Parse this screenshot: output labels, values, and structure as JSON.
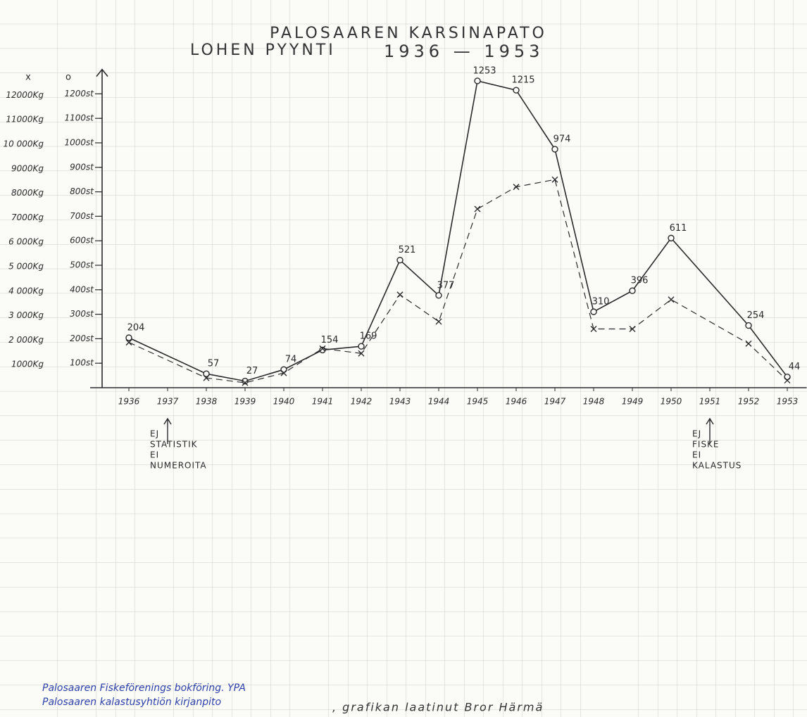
{
  "chart_data": {
    "type": "line",
    "title": "PALOSAAREN KARSINAPATO",
    "subtitle": "LOHEN PYYNTI",
    "period": "1936 — 1953",
    "x": [
      1936,
      1938,
      1939,
      1940,
      1941,
      1942,
      1943,
      1944,
      1945,
      1946,
      1947,
      1948,
      1949,
      1950,
      1952,
      1953
    ],
    "xlim": [
      1935,
      1953.5
    ],
    "xticks": [
      1936,
      1937,
      1938,
      1939,
      1940,
      1941,
      1942,
      1943,
      1944,
      1945,
      1946,
      1947,
      1948,
      1949,
      1950,
      1951,
      1952,
      1953
    ],
    "last_xtick_color": "#2b3fa8",
    "ylim": [
      0,
      1300
    ],
    "yticks": [
      {
        "value": 100,
        "label": "100st"
      },
      {
        "value": 200,
        "label": "200st"
      },
      {
        "value": 300,
        "label": "300st"
      },
      {
        "value": 400,
        "label": "400st"
      },
      {
        "value": 500,
        "label": "500st"
      },
      {
        "value": 600,
        "label": "600st"
      },
      {
        "value": 700,
        "label": "700st"
      },
      {
        "value": 800,
        "label": "800st"
      },
      {
        "value": 900,
        "label": "900st"
      },
      {
        "value": 1000,
        "label": "1000st"
      },
      {
        "value": 1100,
        "label": "1100st"
      },
      {
        "value": 1200,
        "label": "1200st"
      }
    ],
    "y2lim": [
      0,
      13000
    ],
    "y2ticks": [
      {
        "value": 1000,
        "label": "1000Kg"
      },
      {
        "value": 2000,
        "label": "2 000Kg"
      },
      {
        "value": 3000,
        "label": "3 000Kg"
      },
      {
        "value": 4000,
        "label": "4 000Kg"
      },
      {
        "value": 5000,
        "label": "5 000Kg"
      },
      {
        "value": 6000,
        "label": "6 000Kg"
      },
      {
        "value": 7000,
        "label": "7000Kg"
      },
      {
        "value": 8000,
        "label": "8000Kg"
      },
      {
        "value": 9000,
        "label": "9000Kg"
      },
      {
        "value": 10000,
        "label": "10 000Kg"
      },
      {
        "value": 11000,
        "label": "11000Kg"
      },
      {
        "value": 12000,
        "label": "12000Kg"
      }
    ],
    "y_header": "o",
    "y2_header": "x",
    "series": [
      {
        "color": "#2a2a2a",
        "style": "solid",
        "marker": "circle",
        "labels": true,
        "values": [
          204,
          57,
          27,
          74,
          154,
          169,
          521,
          377,
          1253,
          1215,
          974,
          310,
          396,
          611,
          254,
          44
        ]
      },
      {
        "color": "#2a2a2a",
        "style": "dashed",
        "marker": "cross",
        "axis": "y2",
        "labels": false,
        "values": [
          1850,
          400,
          200,
          600,
          1600,
          1400,
          3800,
          2700,
          7300,
          8200,
          8500,
          2400,
          2400,
          3600,
          1800,
          300
        ]
      }
    ],
    "annotations": [
      {
        "x": 1937,
        "lines": [
          "EJ",
          "STATISTIK",
          "EI",
          "NUMEROITA"
        ]
      },
      {
        "x": 1951,
        "lines": [
          "EJ",
          "FISKE",
          "EI",
          "KALASTUS"
        ]
      }
    ],
    "sources": [
      "Palosaaren Fiskeförenings bokföring. YPA",
      "Palosaaren kalastusyhtiön kirjanpito"
    ],
    "author": ", grafikan laatinut Bror Härmä"
  }
}
